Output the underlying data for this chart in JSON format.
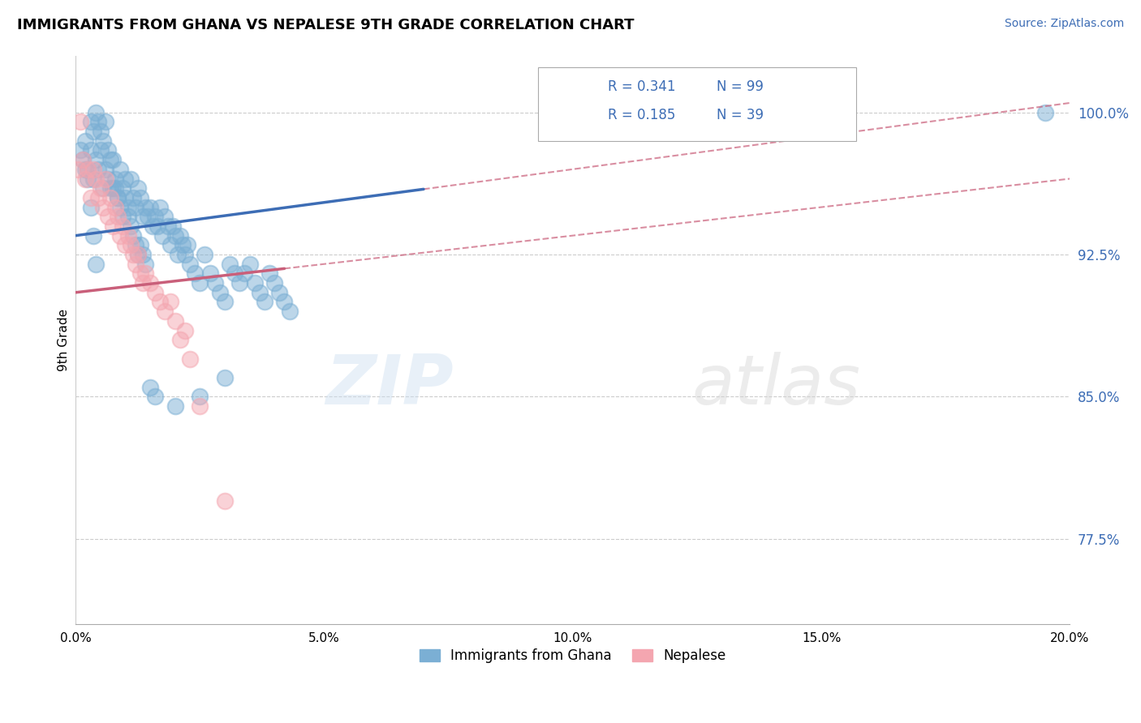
{
  "title": "IMMIGRANTS FROM GHANA VS NEPALESE 9TH GRADE CORRELATION CHART",
  "source_text": "Source: ZipAtlas.com",
  "ylabel": "9th Grade",
  "y_ticks": [
    77.5,
    85.0,
    92.5,
    100.0
  ],
  "y_tick_labels": [
    "77.5%",
    "85.0%",
    "92.5%",
    "100.0%"
  ],
  "xlim": [
    0.0,
    20.0
  ],
  "ylim": [
    73.0,
    103.0
  ],
  "x_ticks": [
    0.0,
    5.0,
    10.0,
    15.0,
    20.0
  ],
  "x_tick_labels": [
    "0.0%",
    "5.0%",
    "10.0%",
    "15.0%",
    "20.0%"
  ],
  "legend_labels": [
    "Immigrants from Ghana",
    "Nepalese"
  ],
  "legend_R": [
    0.341,
    0.185
  ],
  "legend_N": [
    99,
    39
  ],
  "blue_color": "#7bafd4",
  "pink_color": "#f4a6b0",
  "blue_line_color": "#3d6db5",
  "pink_line_color": "#c95f7a",
  "watermark_zip": "ZIP",
  "watermark_atlas": "atlas",
  "blue_scatter_x": [
    0.1,
    0.15,
    0.2,
    0.25,
    0.3,
    0.35,
    0.4,
    0.45,
    0.5,
    0.55,
    0.6,
    0.65,
    0.7,
    0.75,
    0.8,
    0.85,
    0.9,
    0.95,
    1.0,
    1.05,
    1.1,
    1.15,
    1.2,
    1.25,
    1.3,
    1.35,
    1.4,
    1.45,
    1.5,
    1.55,
    1.6,
    1.65,
    1.7,
    1.75,
    1.8,
    1.85,
    1.9,
    1.95,
    2.0,
    2.05,
    2.1,
    2.15,
    2.2,
    2.25,
    2.3,
    2.4,
    2.5,
    2.6,
    2.7,
    2.8,
    2.9,
    3.0,
    3.1,
    3.2,
    3.3,
    3.4,
    3.5,
    3.6,
    3.7,
    3.8,
    3.9,
    4.0,
    4.1,
    4.2,
    4.3,
    0.3,
    0.35,
    0.4,
    0.45,
    0.5,
    0.55,
    0.6,
    0.65,
    0.7,
    0.75,
    0.8,
    0.85,
    0.9,
    0.95,
    1.0,
    1.05,
    1.1,
    1.15,
    1.2,
    1.25,
    1.3,
    1.35,
    1.4,
    1.5,
    1.6,
    2.0,
    2.5,
    3.0,
    0.2,
    0.25,
    0.3,
    0.35,
    0.4,
    19.5
  ],
  "blue_scatter_y": [
    98.0,
    97.5,
    98.5,
    97.0,
    98.0,
    96.5,
    97.5,
    97.0,
    98.0,
    96.0,
    97.0,
    96.5,
    96.0,
    97.5,
    96.0,
    95.5,
    97.0,
    96.0,
    96.5,
    95.0,
    96.5,
    95.5,
    95.0,
    96.0,
    95.5,
    94.5,
    95.0,
    94.5,
    95.0,
    94.0,
    94.5,
    94.0,
    95.0,
    93.5,
    94.5,
    94.0,
    93.0,
    94.0,
    93.5,
    92.5,
    93.5,
    93.0,
    92.5,
    93.0,
    92.0,
    91.5,
    91.0,
    92.5,
    91.5,
    91.0,
    90.5,
    90.0,
    92.0,
    91.5,
    91.0,
    91.5,
    92.0,
    91.0,
    90.5,
    90.0,
    91.5,
    91.0,
    90.5,
    90.0,
    89.5,
    99.5,
    99.0,
    100.0,
    99.5,
    99.0,
    98.5,
    99.5,
    98.0,
    97.5,
    96.0,
    96.5,
    95.5,
    95.0,
    94.5,
    95.5,
    94.5,
    94.0,
    93.5,
    93.0,
    92.5,
    93.0,
    92.5,
    92.0,
    85.5,
    85.0,
    84.5,
    85.0,
    86.0,
    97.0,
    96.5,
    95.0,
    93.5,
    92.0,
    100.0
  ],
  "pink_scatter_x": [
    0.05,
    0.1,
    0.15,
    0.2,
    0.25,
    0.3,
    0.35,
    0.4,
    0.45,
    0.5,
    0.55,
    0.6,
    0.65,
    0.7,
    0.75,
    0.8,
    0.85,
    0.9,
    0.95,
    1.0,
    1.05,
    1.1,
    1.15,
    1.2,
    1.25,
    1.3,
    1.35,
    1.4,
    1.5,
    1.6,
    1.7,
    1.8,
    1.9,
    2.0,
    2.1,
    2.2,
    2.3,
    2.5,
    3.0
  ],
  "pink_scatter_y": [
    97.0,
    99.5,
    97.5,
    96.5,
    97.0,
    95.5,
    97.0,
    96.5,
    95.5,
    96.0,
    95.0,
    96.5,
    94.5,
    95.5,
    94.0,
    95.0,
    94.5,
    93.5,
    94.0,
    93.0,
    93.5,
    93.0,
    92.5,
    92.0,
    92.5,
    91.5,
    91.0,
    91.5,
    91.0,
    90.5,
    90.0,
    89.5,
    90.0,
    89.0,
    88.0,
    88.5,
    87.0,
    84.5,
    79.5
  ],
  "blue_line_x0": 0.0,
  "blue_line_y0": 93.5,
  "blue_line_x1": 20.0,
  "blue_line_y1": 100.5,
  "pink_line_x0": 0.0,
  "pink_line_y0": 90.5,
  "pink_line_x1": 20.0,
  "pink_line_y1": 96.5,
  "blue_solid_xmax": 7.0,
  "pink_solid_xmax": 4.2
}
